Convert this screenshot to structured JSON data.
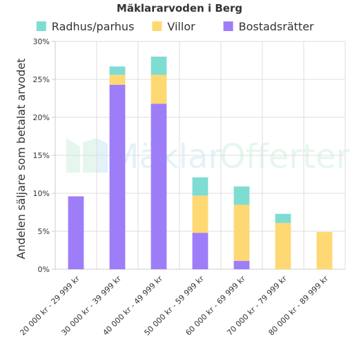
{
  "chart_data": {
    "type": "bar",
    "stacked": true,
    "title": "Mäklararvoden i Berg",
    "ylabel": "Andelen säljare som betalat arvodet",
    "xlabel": "",
    "ylim": [
      0,
      30
    ],
    "yticks": [
      "0%",
      "5%",
      "10%",
      "15%",
      "20%",
      "25%",
      "30%"
    ],
    "grid": true,
    "legend_position": "top",
    "categories": [
      "20 000 kr - 29 999 kr",
      "30 000 kr - 39 999 kr",
      "40 000 kr - 49 999 kr",
      "50 000 kr - 59 999 kr",
      "60 000 kr - 69 999 kr",
      "70 000 kr - 79 999 kr",
      "80 000 kr - 89 999 kr"
    ],
    "series": [
      {
        "name": "Bostadsrätter",
        "color": "#9d7ef8",
        "values": [
          9.6,
          24.3,
          21.8,
          4.8,
          1.1,
          0,
          0
        ]
      },
      {
        "name": "Villor",
        "color": "#fed872",
        "values": [
          0,
          1.3,
          3.8,
          4.9,
          7.4,
          6.1,
          4.9
        ]
      },
      {
        "name": "Radhus/parhus",
        "color": "#7fdcd3",
        "values": [
          0,
          1.1,
          2.4,
          2.4,
          2.4,
          1.2,
          0
        ]
      }
    ],
    "legend_order": [
      "Radhus/parhus",
      "Villor",
      "Bostadsrätter"
    ]
  },
  "watermark": {
    "text_1": "Mäklar",
    "text_2": "Offerter"
  }
}
